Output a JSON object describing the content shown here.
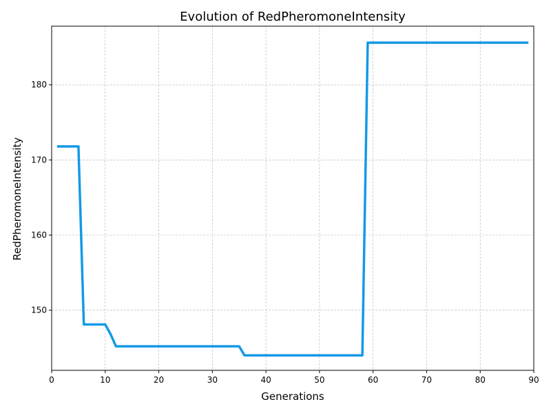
{
  "chart_data": {
    "type": "line",
    "title": "Evolution of RedPheromoneIntensity",
    "xlabel": "Generations",
    "ylabel": "RedPheromoneIntensity",
    "xlim": [
      0,
      90
    ],
    "ylim": [
      142,
      187.8
    ],
    "xticks": [
      0,
      10,
      20,
      30,
      40,
      50,
      60,
      70,
      80,
      90
    ],
    "yticks": [
      150,
      160,
      170,
      180
    ],
    "grid": true,
    "line_color": "#1399e6",
    "series": [
      {
        "x": [
          1,
          5,
          6,
          10,
          11,
          12,
          35,
          36,
          58,
          59,
          89
        ],
        "y": [
          171.8,
          171.8,
          148.1,
          148.1,
          146.8,
          145.2,
          145.2,
          144.0,
          144.0,
          185.6,
          185.6
        ]
      }
    ]
  }
}
